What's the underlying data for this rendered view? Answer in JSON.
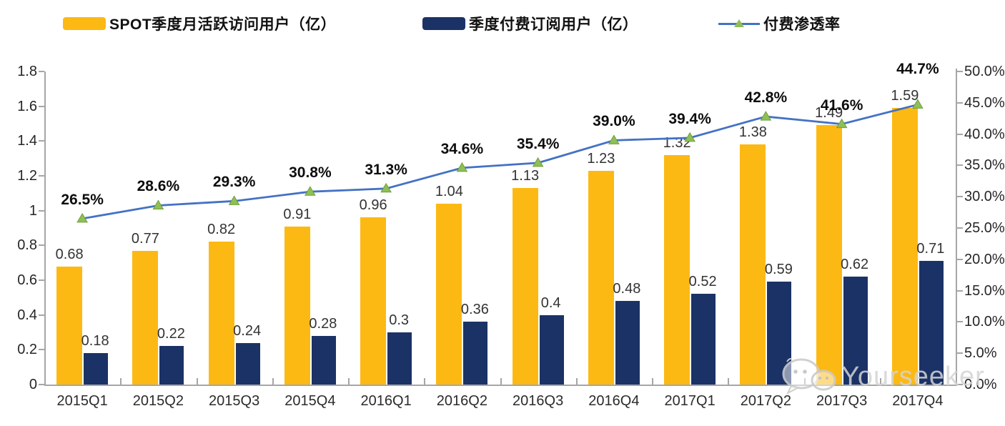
{
  "legend": {
    "items": [
      {
        "id": "mau",
        "label": "SPOT季度月活跃访问用户（亿）",
        "swatch": "bar",
        "color": "#FDB913"
      },
      {
        "id": "subs",
        "label": "季度付费订阅用户（亿）",
        "swatch": "bar",
        "color": "#1B3266"
      },
      {
        "id": "penetration",
        "label": "付费渗透率",
        "swatch": "line",
        "color": "#4472C4",
        "marker_color": "#8FBF55"
      }
    ]
  },
  "chart_data": {
    "type": "combo-bar-line",
    "categories": [
      "2015Q1",
      "2015Q2",
      "2015Q3",
      "2015Q4",
      "2016Q1",
      "2016Q2",
      "2016Q3",
      "2016Q4",
      "2017Q1",
      "2017Q2",
      "2017Q3",
      "2017Q4"
    ],
    "series": [
      {
        "name": "SPOT季度月活跃访问用户（亿）",
        "type": "bar",
        "axis": "left",
        "color": "#FDB913",
        "values": [
          0.68,
          0.77,
          0.82,
          0.91,
          0.96,
          1.04,
          1.13,
          1.23,
          1.32,
          1.38,
          1.49,
          1.59
        ],
        "labels": [
          "0.68",
          "0.77",
          "0.82",
          "0.91",
          "0.96",
          "1.04",
          "1.13",
          "1.23",
          "1.32",
          "1.38",
          "1.49",
          "1.59"
        ]
      },
      {
        "name": "季度付费订阅用户（亿）",
        "type": "bar",
        "axis": "left",
        "color": "#1B3266",
        "values": [
          0.18,
          0.22,
          0.24,
          0.28,
          0.3,
          0.36,
          0.4,
          0.48,
          0.52,
          0.59,
          0.62,
          0.71
        ],
        "labels": [
          "0.18",
          "0.22",
          "0.24",
          "0.28",
          "0.3",
          "0.36",
          "0.4",
          "0.48",
          "0.52",
          "0.59",
          "0.62",
          "0.71"
        ]
      },
      {
        "name": "付费渗透率",
        "type": "line",
        "axis": "right",
        "color": "#4472C4",
        "marker": "triangle",
        "marker_color": "#8FBF55",
        "marker_edge": "#6FA03C",
        "values": [
          26.5,
          28.6,
          29.3,
          30.8,
          31.3,
          34.6,
          35.4,
          39.0,
          39.4,
          42.8,
          41.6,
          44.7
        ],
        "labels": [
          "26.5%",
          "28.6%",
          "29.3%",
          "30.8%",
          "31.3%",
          "34.6%",
          "35.4%",
          "39.0%",
          "39.4%",
          "42.8%",
          "41.6%",
          "44.7%"
        ]
      }
    ],
    "left_axis": {
      "min": 0,
      "max": 1.8,
      "tick_labels": [
        "0",
        "0.2",
        "0.4",
        "0.6",
        "0.8",
        "1",
        "1.2",
        "1.4",
        "1.6",
        "1.8"
      ]
    },
    "right_axis": {
      "min": 0,
      "max": 50,
      "tick_labels": [
        "0.0%",
        "5.0%",
        "10.0%",
        "15.0%",
        "20.0%",
        "25.0%",
        "30.0%",
        "35.0%",
        "40.0%",
        "45.0%",
        "50.0%"
      ]
    },
    "grid": false,
    "legend_position": "top"
  },
  "watermark": {
    "text": "Yourseeker"
  },
  "colors": {
    "axis": "#A6A6A6",
    "value_label": "#333333",
    "pct_label": "#0d0d0d",
    "tick_label": "#262626"
  }
}
